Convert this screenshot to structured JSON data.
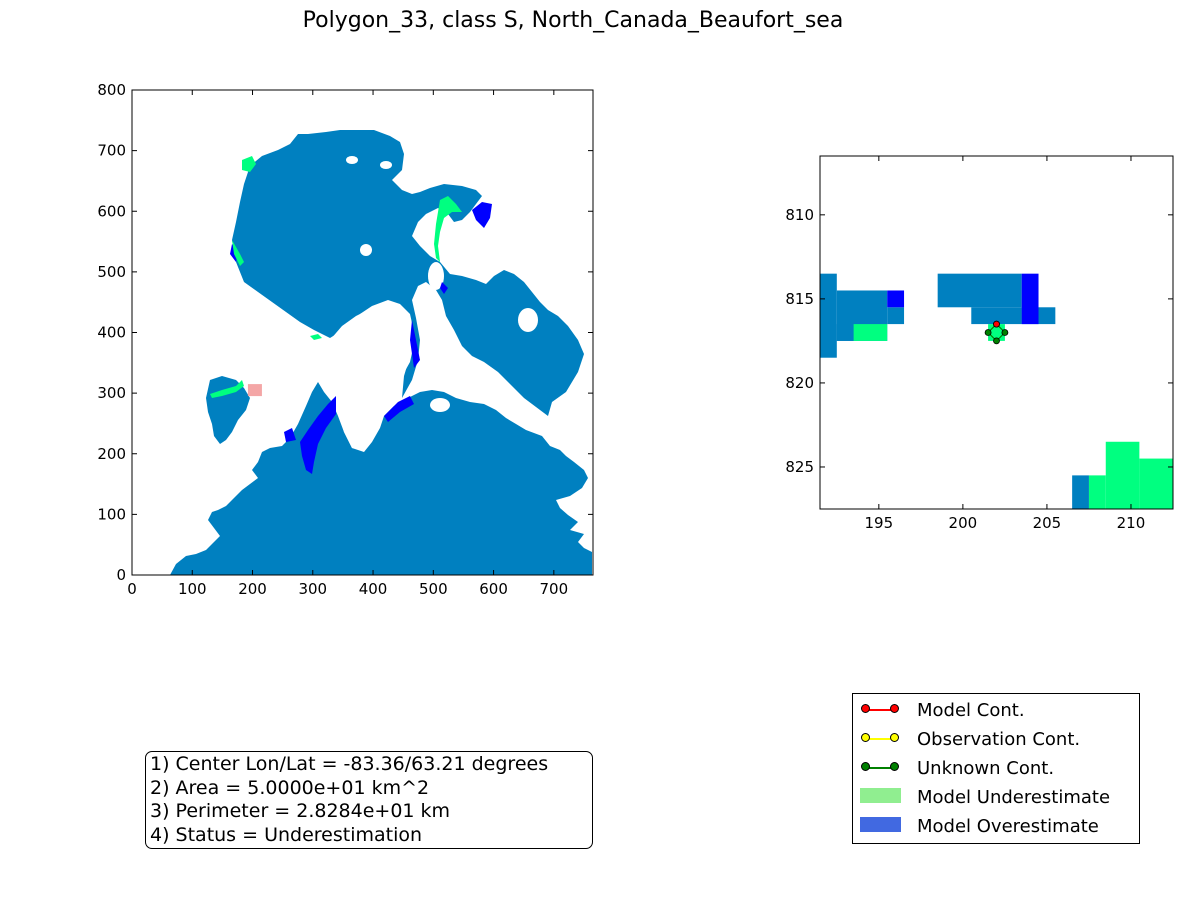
{
  "title": "Polygon_33, class S, North_Canada_Beaufort_sea",
  "colors": {
    "ocean": "#0080c0",
    "underestimate_cells": "#00ff80",
    "overestimate_cells": "#0000ff",
    "land": "#ffffff",
    "highlight_polygon": "#f4a6a6"
  },
  "chart_data": [
    {
      "type": "heatmap",
      "name": "overview-map",
      "xlim": [
        0,
        765
      ],
      "ylim": [
        0,
        800
      ],
      "xticks": [
        0,
        100,
        200,
        300,
        400,
        500,
        600,
        700
      ],
      "yticks": [
        0,
        100,
        200,
        300,
        400,
        500,
        600,
        700,
        800
      ],
      "grid": false,
      "highlight_polygon_center": [
        204,
        305
      ]
    },
    {
      "type": "heatmap",
      "name": "zoom-map",
      "xlim": [
        191.5,
        212.5
      ],
      "ylim": [
        827.5,
        806.5
      ],
      "xticks": [
        195,
        200,
        205,
        210
      ],
      "yticks": [
        810,
        815,
        820,
        825
      ],
      "grid": false,
      "cells": {
        "ocean": [
          [
            191.5,
            813.5,
            1,
            5
          ],
          [
            192.5,
            814.5,
            3,
            3
          ],
          [
            195.5,
            815.5,
            1,
            1
          ],
          [
            192.5,
            816.5,
            1,
            1
          ],
          [
            198.5,
            813.5,
            5,
            2
          ],
          [
            200.5,
            815.5,
            3,
            1
          ],
          [
            203.5,
            815.5,
            2,
            1
          ],
          [
            206.5,
            825.5,
            1,
            2
          ],
          [
            211.5,
            825.5,
            1,
            2
          ]
        ],
        "overestimate": [
          [
            195.5,
            814.5,
            1,
            1
          ],
          [
            203.5,
            813.5,
            1,
            3
          ]
        ],
        "underestimate": [
          [
            193.5,
            816.5,
            2,
            1
          ],
          [
            201.5,
            816.5,
            1,
            1
          ],
          [
            208.5,
            823.5,
            2,
            4
          ],
          [
            207.5,
            825.5,
            1,
            2
          ],
          [
            210.5,
            824.5,
            2,
            3
          ]
        ]
      },
      "contour": {
        "type": "Unknown Cont.",
        "points": [
          [
            202,
            816.5
          ],
          [
            201.5,
            817
          ],
          [
            202,
            817.5
          ],
          [
            202.5,
            817
          ]
        ],
        "model_point": [
          202,
          816.5
        ]
      }
    }
  ],
  "info": {
    "line1": "1) Center Lon/Lat = -83.36/63.21 degrees",
    "line2": "2) Area = 5.0000e+01 km^2",
    "line3": "3) Perimeter = 2.8284e+01 km",
    "line4": "4) Status = Underestimation"
  },
  "legend": {
    "model_cont": {
      "label": "Model Cont.",
      "color": "#ff0000"
    },
    "obs_cont": {
      "label": "Observation Cont.",
      "color": "#ffff00"
    },
    "unknown_cont": {
      "label": "Unknown Cont.",
      "color": "#008000"
    },
    "model_under": {
      "label": "Model Underestimate",
      "color": "#90ee90"
    },
    "model_over": {
      "label": "Model Overestimate",
      "color": "#4169e1"
    }
  }
}
